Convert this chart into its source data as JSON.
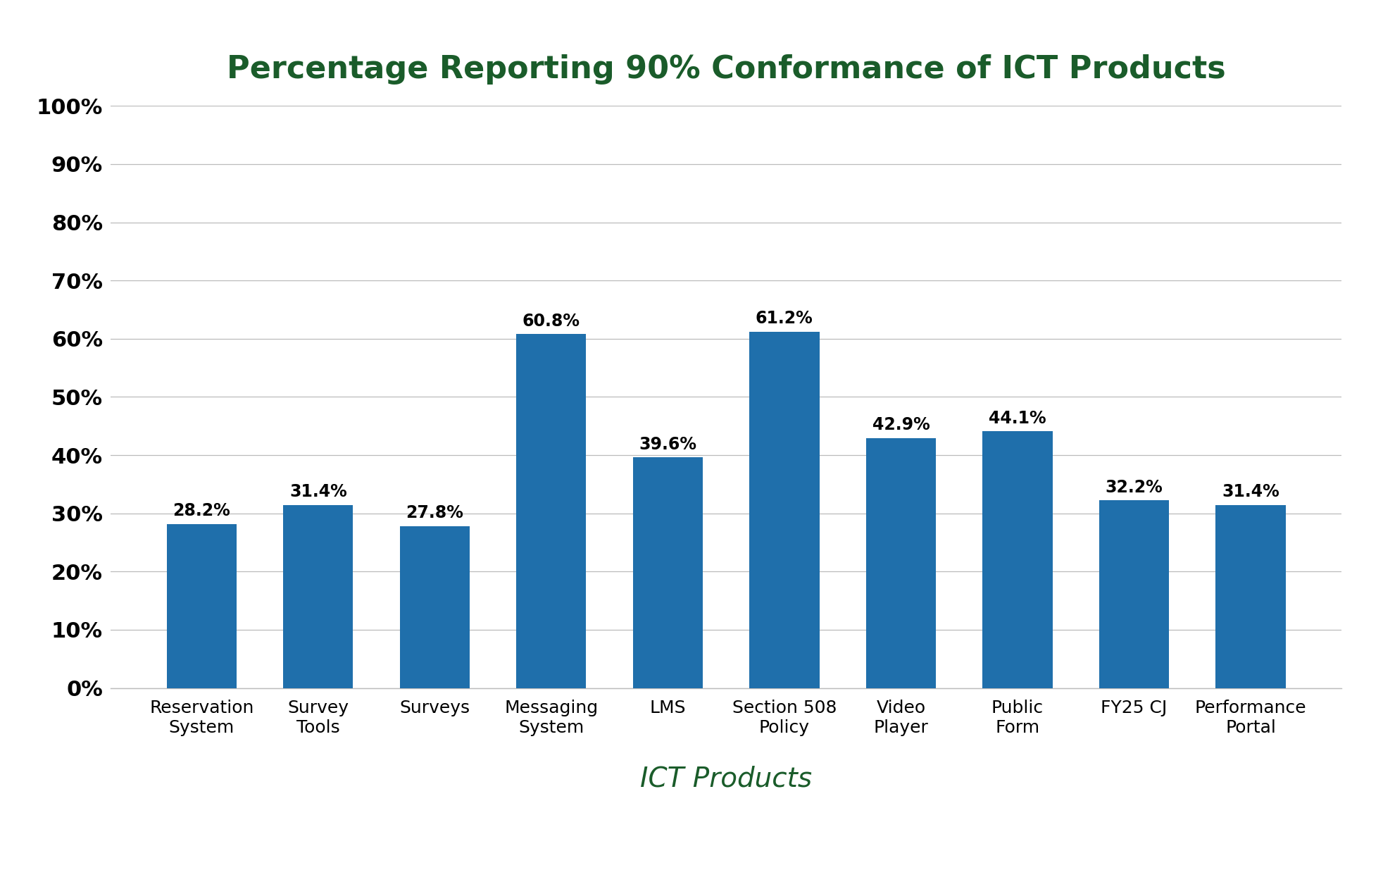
{
  "title": "Percentage Reporting 90% Conformance of ICT Products",
  "xlabel": "ICT Products",
  "categories": [
    "Reservation\nSystem",
    "Survey\nTools",
    "Surveys",
    "Messaging\nSystem",
    "LMS",
    "Section 508\nPolicy",
    "Video\nPlayer",
    "Public\nForm",
    "FY25 CJ",
    "Performance\nPortal"
  ],
  "values": [
    28.2,
    31.4,
    27.8,
    60.8,
    39.6,
    61.2,
    42.9,
    44.1,
    32.2,
    31.4
  ],
  "bar_color": "#1F6FAB",
  "title_color": "#1A5C2A",
  "xlabel_color": "#1A5C2A",
  "ylim": [
    0,
    100
  ],
  "background_color": "#ffffff",
  "grid_color": "#BBBBBB",
  "title_fontsize": 32,
  "xlabel_fontsize": 28,
  "bar_label_fontsize": 17,
  "ytick_fontsize": 22,
  "xtick_fontsize": 18
}
